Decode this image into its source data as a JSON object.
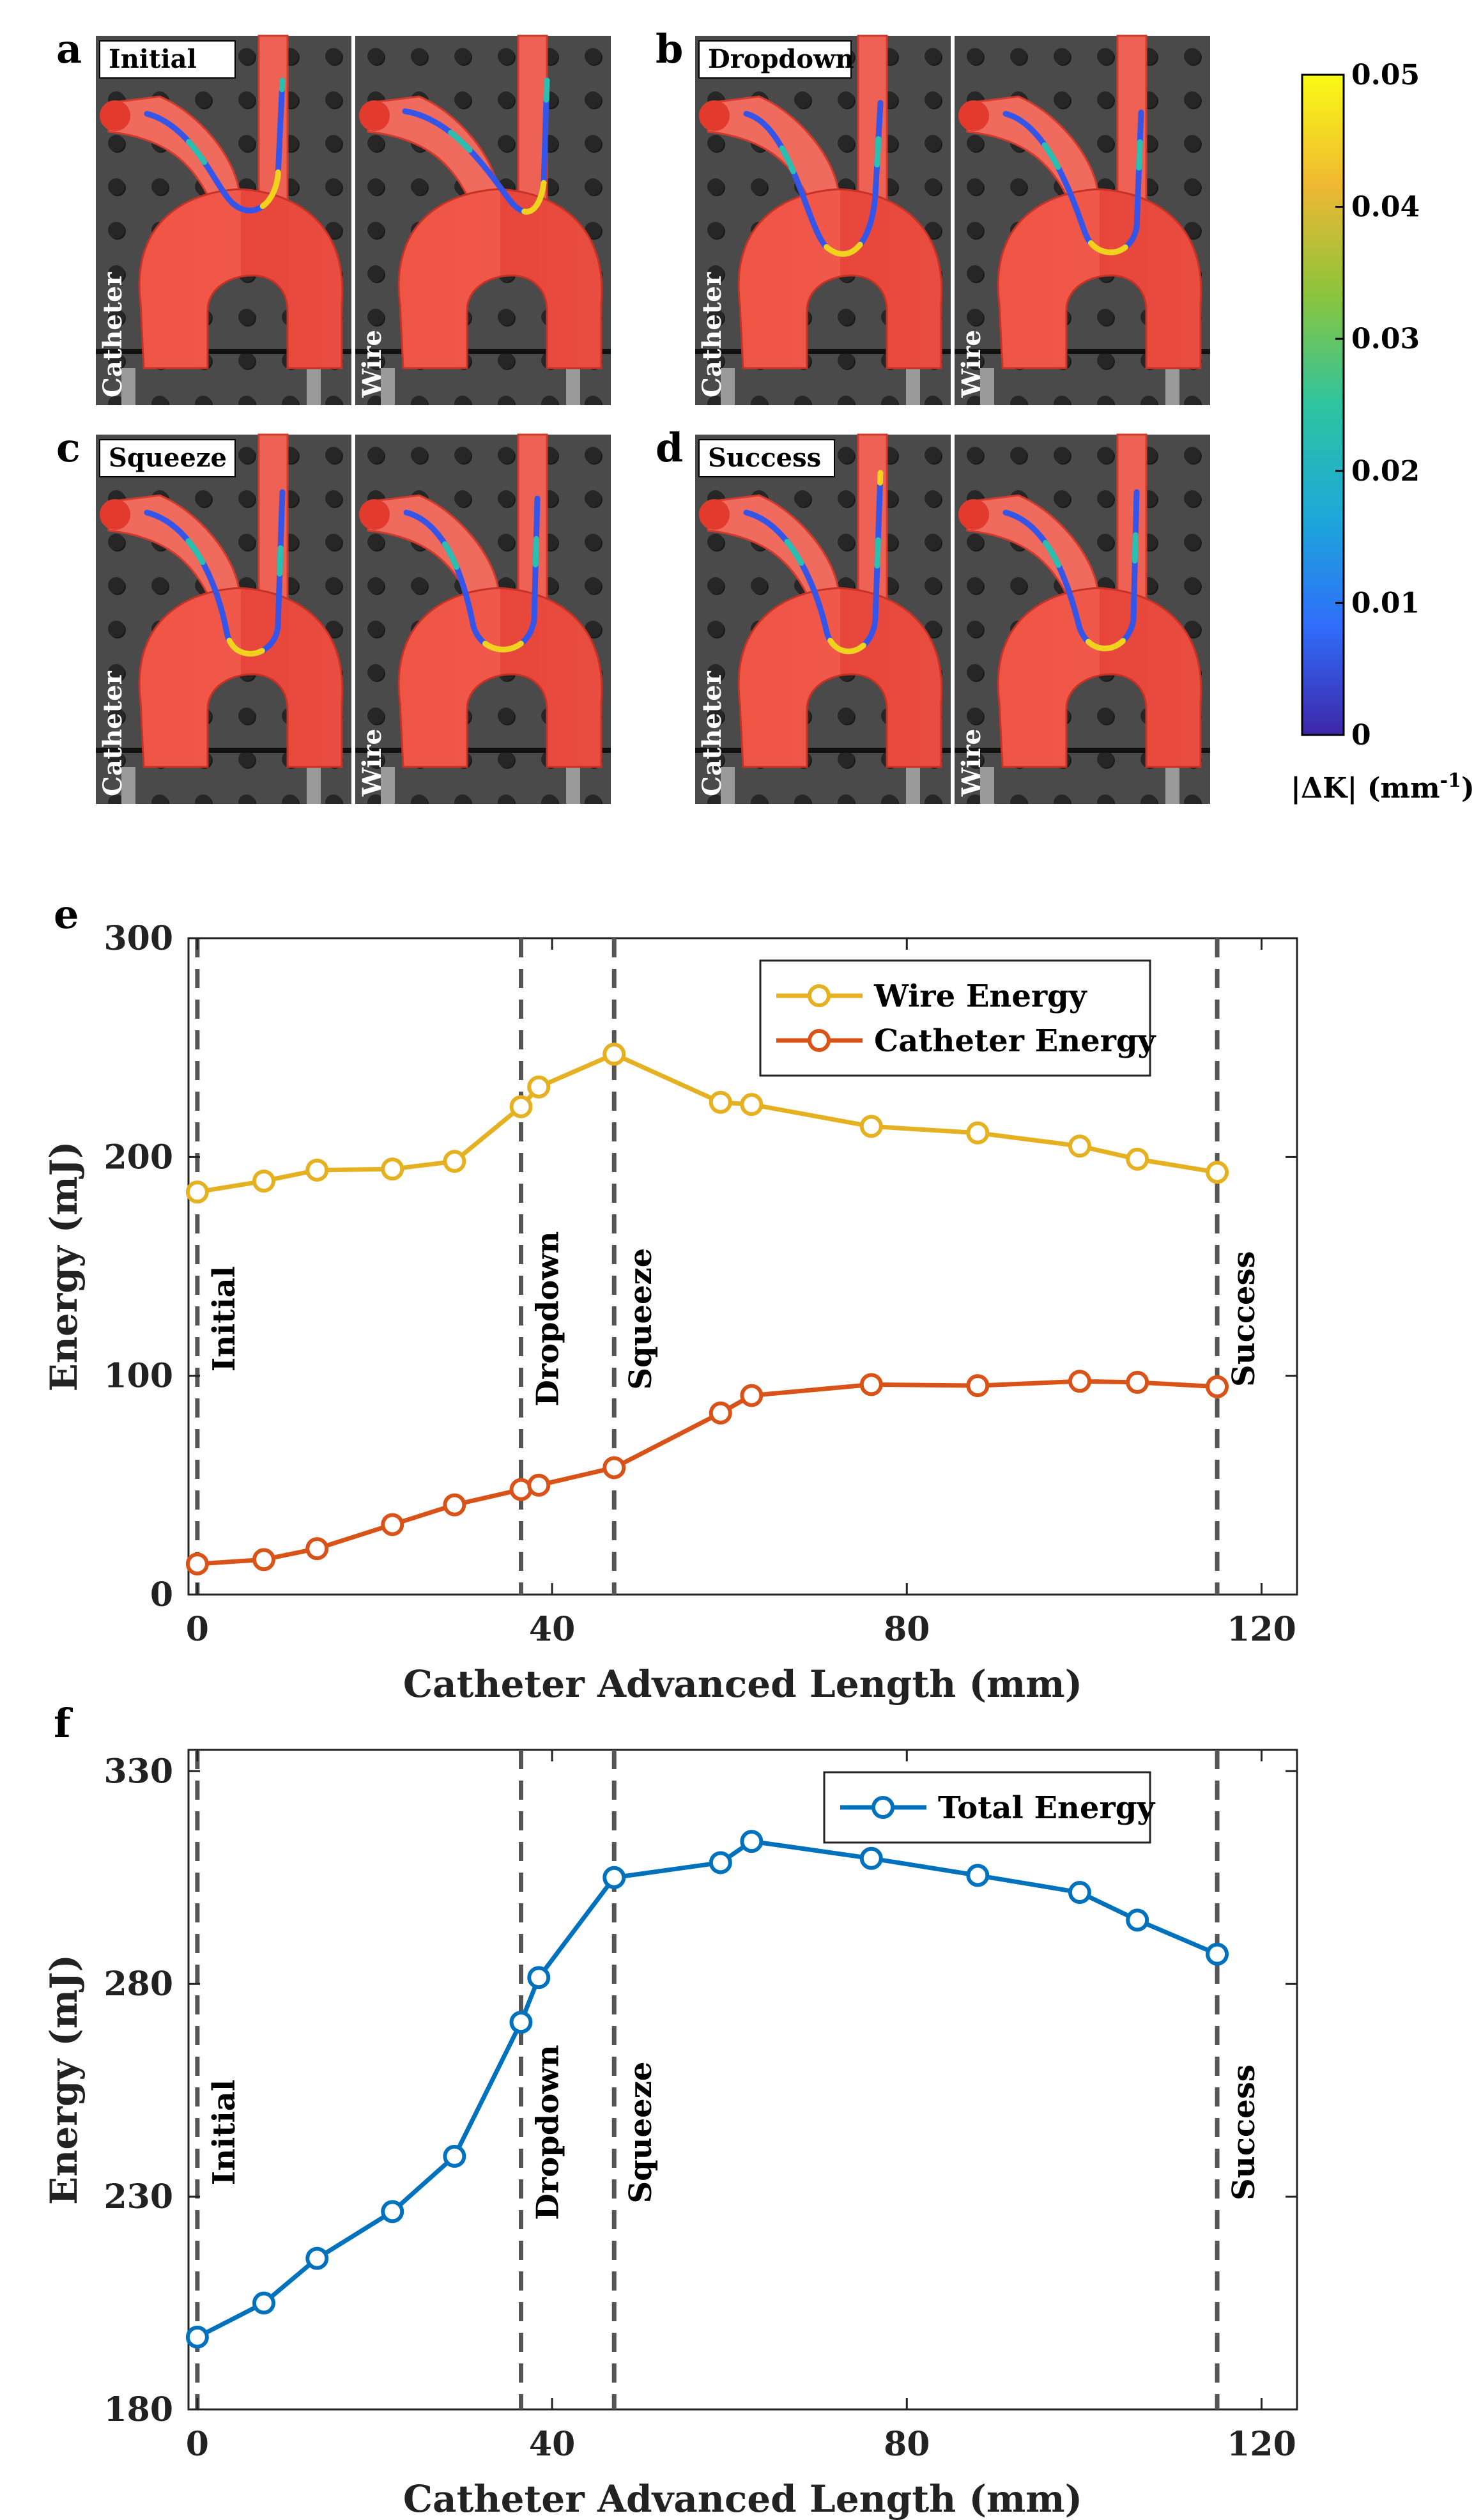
{
  "panels_top": [
    {
      "letter": "a",
      "tag": "Initial",
      "left_label": "Catheter",
      "right_label": "Wire"
    },
    {
      "letter": "b",
      "tag": "Dropdown",
      "left_label": "Catheter",
      "right_label": "Wire"
    },
    {
      "letter": "c",
      "tag": "Squeeze",
      "left_label": "Catheter",
      "right_label": "Wire"
    },
    {
      "letter": "d",
      "tag": "Success",
      "left_label": "Catheter",
      "right_label": "Wire"
    }
  ],
  "colorbar": {
    "ticks": [
      "0.05",
      "0.04",
      "0.03",
      "0.02",
      "0.01",
      "0"
    ],
    "label_main": "|ΔK| (mm",
    "label_sup": "-1",
    "label_end": ")",
    "colors": [
      "#3e26a8",
      "#2f6efa",
      "#1ca9d8",
      "#2ec4a0",
      "#8cc43c",
      "#f0b832",
      "#f9fb15"
    ]
  },
  "chart_data": [
    {
      "panel": "e",
      "type": "line",
      "title": "",
      "xlabel": "Catheter Advanced Length (mm)",
      "ylabel": "Energy (mJ)",
      "xlim": [
        -1,
        124
      ],
      "ylim": [
        0,
        300
      ],
      "xticks": [
        0,
        40,
        80,
        120
      ],
      "yticks": [
        0,
        100,
        200,
        300
      ],
      "grid": false,
      "legend_position": "top-right",
      "series": [
        {
          "name": "Wire Energy",
          "color": "#E5B120",
          "x": [
            0,
            7.5,
            13.5,
            22,
            29,
            36.5,
            38.5,
            47,
            59,
            62.5,
            76,
            88,
            99.5,
            106,
            115
          ],
          "y": [
            184,
            189,
            194,
            194.5,
            198,
            223,
            232,
            247,
            225,
            224,
            214,
            211,
            205,
            199,
            193
          ]
        },
        {
          "name": "Catheter Energy",
          "color": "#D95319",
          "x": [
            0,
            7.5,
            13.5,
            22,
            29,
            36.5,
            38.5,
            47,
            59,
            62.5,
            76,
            88,
            99.5,
            106,
            115
          ],
          "y": [
            14,
            16,
            21,
            32,
            41,
            48,
            50,
            58,
            83,
            91,
            96,
            95.5,
            97.5,
            97,
            95
          ]
        }
      ],
      "events": [
        {
          "x": 0,
          "label": "Initial"
        },
        {
          "x": 36.5,
          "label": "Dropdown"
        },
        {
          "x": 47,
          "label": "Squeeze"
        },
        {
          "x": 115,
          "label": "Success"
        }
      ]
    },
    {
      "panel": "f",
      "type": "line",
      "title": "",
      "xlabel": "Catheter Advanced Length (mm)",
      "ylabel": "Energy (mJ)",
      "xlim": [
        -1,
        124
      ],
      "ylim": [
        180,
        335
      ],
      "xticks": [
        0,
        40,
        80,
        120
      ],
      "yticks": [
        180,
        230,
        280,
        330
      ],
      "grid": false,
      "legend_position": "top-right",
      "series": [
        {
          "name": "Total Energy",
          "color": "#0072BD",
          "x": [
            0,
            7.5,
            13.5,
            22,
            29,
            36.5,
            38.5,
            47,
            59,
            62.5,
            76,
            88,
            99.5,
            106,
            115
          ],
          "y": [
            197,
            205,
            215.5,
            226.5,
            239.5,
            271,
            281.5,
            305,
            308.5,
            313.5,
            309.5,
            305.5,
            301.5,
            295,
            287
          ]
        }
      ],
      "events": [
        {
          "x": 0,
          "label": "Initial"
        },
        {
          "x": 36.5,
          "label": "Dropdown"
        },
        {
          "x": 47,
          "label": "Squeeze"
        },
        {
          "x": 115,
          "label": "Success"
        }
      ]
    }
  ]
}
